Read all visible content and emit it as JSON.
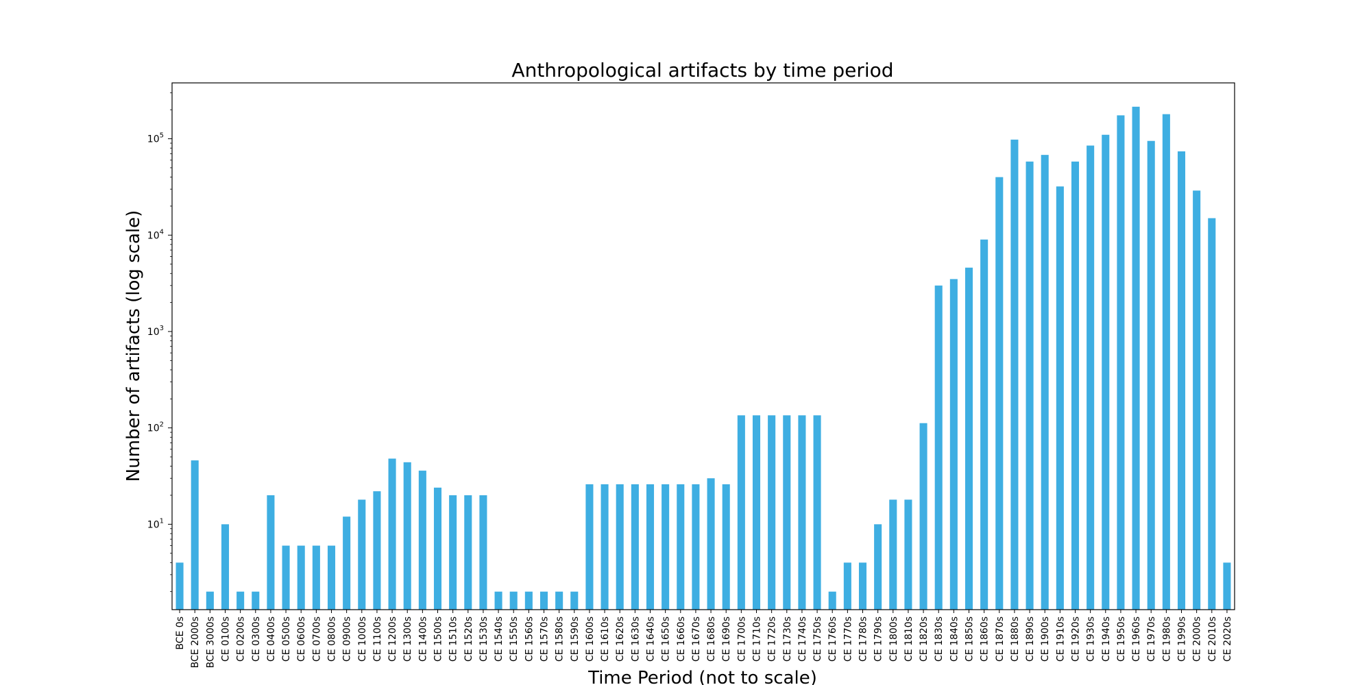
{
  "chart_data": {
    "type": "bar",
    "title": "Anthropological artifacts by time period",
    "xlabel": "Time Period (not to scale)",
    "ylabel": "Number of artifacts (log scale)",
    "yscale": "log",
    "ylim": [
      1.3,
      380000
    ],
    "yticks": [
      {
        "value": 10,
        "base": "10",
        "exp": "1"
      },
      {
        "value": 100,
        "base": "10",
        "exp": "2"
      },
      {
        "value": 1000,
        "base": "10",
        "exp": "3"
      },
      {
        "value": 10000,
        "base": "10",
        "exp": "4"
      },
      {
        "value": 100000,
        "base": "10",
        "exp": "5"
      }
    ],
    "grid": false,
    "bar_color": "#3eaee2",
    "categories": [
      "BCE 0s",
      "BCE 2000s",
      "BCE 3000s",
      "CE 0100s",
      "CE 0200s",
      "CE 0300s",
      "CE 0400s",
      "CE 0500s",
      "CE 0600s",
      "CE 0700s",
      "CE 0800s",
      "CE 0900s",
      "CE 1000s",
      "CE 1100s",
      "CE 1200s",
      "CE 1300s",
      "CE 1400s",
      "CE 1500s",
      "CE 1510s",
      "CE 1520s",
      "CE 1530s",
      "CE 1540s",
      "CE 1550s",
      "CE 1560s",
      "CE 1570s",
      "CE 1580s",
      "CE 1590s",
      "CE 1600s",
      "CE 1610s",
      "CE 1620s",
      "CE 1630s",
      "CE 1640s",
      "CE 1650s",
      "CE 1660s",
      "CE 1670s",
      "CE 1680s",
      "CE 1690s",
      "CE 1700s",
      "CE 1710s",
      "CE 1720s",
      "CE 1730s",
      "CE 1740s",
      "CE 1750s",
      "CE 1760s",
      "CE 1770s",
      "CE 1780s",
      "CE 1790s",
      "CE 1800s",
      "CE 1810s",
      "CE 1820s",
      "CE 1830s",
      "CE 1840s",
      "CE 1850s",
      "CE 1860s",
      "CE 1870s",
      "CE 1880s",
      "CE 1890s",
      "CE 1900s",
      "CE 1910s",
      "CE 1920s",
      "CE 1930s",
      "CE 1940s",
      "CE 1950s",
      "CE 1960s",
      "CE 1970s",
      "CE 1980s",
      "CE 1990s",
      "CE 2000s",
      "CE 2010s",
      "CE 2020s"
    ],
    "values": [
      4,
      46,
      2,
      10,
      2,
      2,
      20,
      6,
      6,
      6,
      6,
      12,
      18,
      22,
      48,
      44,
      36,
      24,
      20,
      20,
      20,
      2,
      2,
      2,
      2,
      2,
      2,
      26,
      26,
      26,
      26,
      26,
      26,
      26,
      26,
      30,
      26,
      135,
      135,
      135,
      135,
      135,
      135,
      2,
      4,
      4,
      10,
      18,
      18,
      112,
      3000,
      3500,
      4600,
      9000,
      40000,
      98000,
      58000,
      68000,
      32000,
      58000,
      85000,
      110000,
      175000,
      215000,
      95000,
      180000,
      74000,
      29000,
      15000,
      4
    ]
  }
}
